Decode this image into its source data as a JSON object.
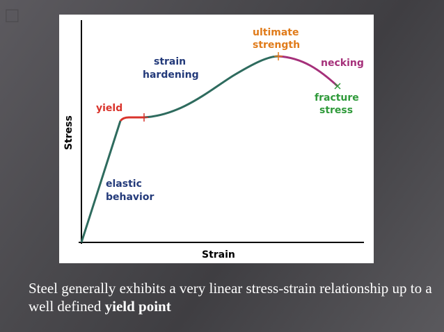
{
  "slide": {
    "corner_glyph": "□",
    "caption_text": "Steel generally exhibits a very linear stress-strain relationship up to a well defined ",
    "caption_bold": "yield point"
  },
  "diagram": {
    "x_axis_label": "Strain",
    "y_axis_label": "Stress",
    "annotations": {
      "yield": "yield",
      "elastic_1": "elastic",
      "elastic_2": "behavior",
      "strain_hardening_1": "strain",
      "strain_hardening_2": "hardening",
      "ultimate_1": "ultimate",
      "ultimate_2": "strength",
      "necking": "necking",
      "fracture_1": "fracture",
      "fracture_2": "stress"
    },
    "colors": {
      "curve": "#2e6b5e",
      "yield_segment": "#d9332b",
      "necking_segment": "#a5307a",
      "label_red": "#d9332b",
      "label_teal": "#2e6b5e",
      "label_orange": "#e07b1a",
      "label_purple": "#a5307a",
      "label_green": "#2f9a3a",
      "label_blue": "#233a7a",
      "axis": "#000000"
    }
  }
}
